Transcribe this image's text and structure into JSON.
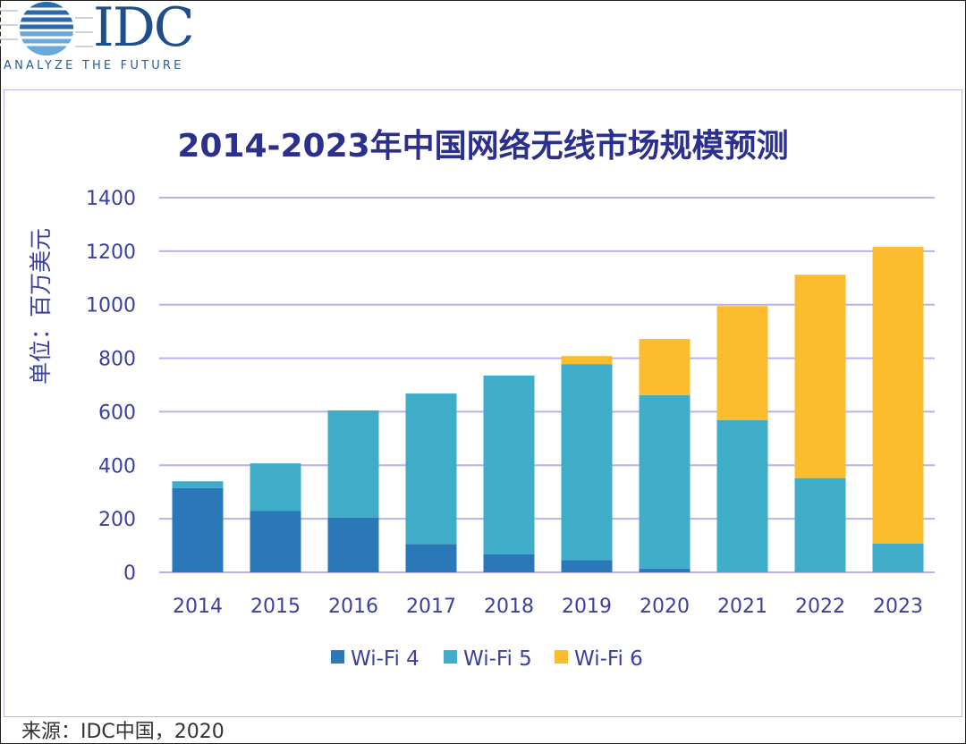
{
  "logo": {
    "name": "IDC",
    "tagline": "ANALYZE THE FUTURE"
  },
  "chart_data": {
    "type": "bar",
    "stacked": true,
    "title": "2014-2023年中国网络无线市场规模预测",
    "ylabel": "单位：百万美元",
    "xlabel": "",
    "ylim": [
      0,
      1400
    ],
    "yticks": [
      0,
      200,
      400,
      600,
      800,
      1000,
      1200,
      1400
    ],
    "grid": true,
    "legend_position": "bottom",
    "categories": [
      "2014",
      "2015",
      "2016",
      "2017",
      "2018",
      "2019",
      "2020",
      "2021",
      "2022",
      "2023"
    ],
    "series": [
      {
        "name": "Wi-Fi 4",
        "color": "#2b78b8",
        "values": [
          315,
          230,
          205,
          105,
          68,
          45,
          14,
          0,
          0,
          0
        ]
      },
      {
        "name": "Wi-Fi 5",
        "color": "#3fadc7",
        "values": [
          25,
          177,
          400,
          563,
          667,
          733,
          648,
          568,
          352,
          108
        ]
      },
      {
        "name": "Wi-Fi 6",
        "color": "#fbbd2e",
        "values": [
          0,
          0,
          0,
          0,
          0,
          30,
          210,
          427,
          760,
          1108
        ]
      }
    ]
  },
  "source": "来源：IDC中国，2020"
}
